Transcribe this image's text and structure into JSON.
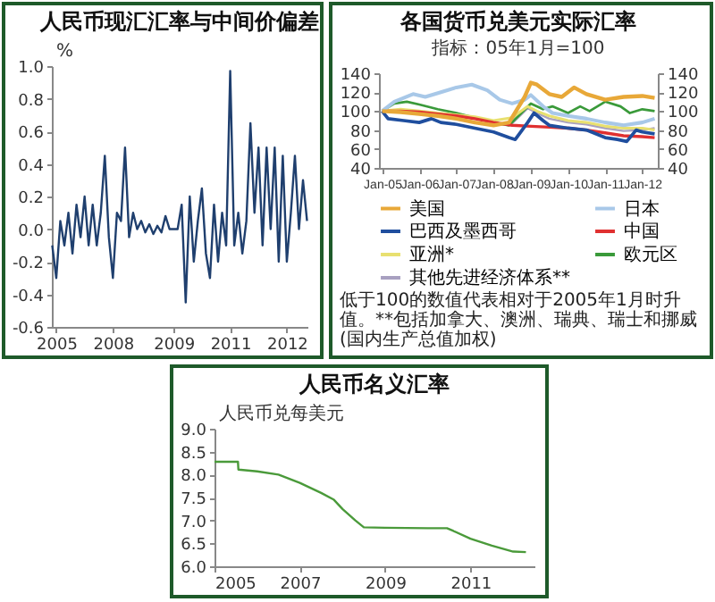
{
  "chart_data": [
    {
      "type": "line",
      "title": "人民币现汇汇率与中间价偏差",
      "ylabel": "%",
      "color": "#1f3f6e",
      "categories": [
        null,
        "2005",
        null,
        null,
        null,
        null,
        null,
        null,
        null,
        null,
        null,
        null,
        null,
        null,
        null,
        "2008",
        null,
        null,
        null,
        null,
        null,
        null,
        null,
        null,
        null,
        null,
        null,
        null,
        null,
        null,
        "2009",
        null,
        null,
        null,
        null,
        null,
        null,
        null,
        null,
        null,
        null,
        null,
        null,
        null,
        "2011",
        null,
        null,
        null,
        null,
        null,
        null,
        null,
        null,
        null,
        null,
        null,
        null,
        null,
        "2012",
        null,
        null,
        null,
        null,
        null
      ],
      "values": [
        -0.1,
        -0.3,
        0.05,
        -0.1,
        0.1,
        -0.15,
        0.15,
        -0.05,
        0.2,
        -0.1,
        0.15,
        -0.1,
        0.1,
        0.45,
        -0.05,
        -0.3,
        0.1,
        0.05,
        0.5,
        -0.05,
        0.1,
        0.0,
        0.05,
        -0.02,
        0.03,
        -0.03,
        0.02,
        -0.02,
        0.08,
        0.0,
        0.0,
        0.0,
        0.15,
        -0.45,
        0.2,
        -0.2,
        0.05,
        0.25,
        -0.15,
        -0.3,
        0.15,
        -0.2,
        0.1,
        -0.1,
        0.97,
        -0.1,
        0.1,
        -0.15,
        0.05,
        0.65,
        0.1,
        0.5,
        -0.1,
        0.5,
        0.0,
        0.5,
        -0.2,
        0.45,
        -0.2,
        0.1,
        0.45,
        0.0,
        0.3,
        0.05
      ],
      "ylim": [
        -0.6,
        1.0
      ],
      "yticks": [
        {
          "value": -0.6,
          "label": "-0.6"
        },
        {
          "value": -0.4,
          "label": "-0.4"
        },
        {
          "value": -0.2,
          "label": "-0.2"
        },
        {
          "value": 0,
          "label": "0.0"
        },
        {
          "value": 0.2,
          "label": "0.2"
        },
        {
          "value": 0.4,
          "label": "0.4"
        },
        {
          "value": 0.6,
          "label": "0.6"
        },
        {
          "value": 0.8,
          "label": "0.8"
        },
        {
          "value": 1.0,
          "label": "1.0"
        }
      ]
    },
    {
      "type": "line",
      "title": "各国货币兑美元实际汇率",
      "subtitle": "指标：05年1月=100",
      "legend": "bottom",
      "annotations": [
        "低于100的数值代表相对于2005年1月时升值。**包括加拿大、澳洲、瑞典、瑞士和挪威(国内生产总值加权)"
      ],
      "series": [
        {
          "name": "美国",
          "color": "#e8a838",
          "x": [
            "2005-01",
            "2005-07",
            "2006-01",
            "2006-07",
            "2007-01",
            "2007-07",
            "2008-01",
            "2008-06",
            "2008-11",
            "2009-01",
            "2009-03",
            "2009-07",
            "2009-11",
            "2010-03",
            "2010-07",
            "2011-01",
            "2011-07",
            "2012-01",
            "2012-05"
          ],
          "values": [
            100,
            99,
            97,
            95,
            92,
            88,
            85,
            88,
            115,
            130,
            128,
            118,
            115,
            125,
            118,
            112,
            115,
            116,
            114
          ]
        },
        {
          "name": "日本",
          "color": "#a8c8e8",
          "x": [
            "2005-01",
            "2005-05",
            "2005-11",
            "2006-03",
            "2006-08",
            "2007-01",
            "2007-06",
            "2007-11",
            "2008-03",
            "2008-07",
            "2008-11",
            "2009-01",
            "2009-05",
            "2009-08",
            "2010-01",
            "2010-07",
            "2011-01",
            "2011-07",
            "2012-01",
            "2012-05"
          ],
          "values": [
            100,
            110,
            118,
            115,
            120,
            125,
            128,
            122,
            112,
            108,
            112,
            117,
            105,
            98,
            95,
            92,
            88,
            85,
            88,
            92
          ]
        },
        {
          "name": "巴西及墨西哥",
          "color": "#1f4e9e",
          "x": [
            "2005-01",
            "2005-03",
            "2005-08",
            "2006-01",
            "2006-05",
            "2006-08",
            "2007-01",
            "2007-07",
            "2008-01",
            "2008-06",
            "2008-08",
            "2008-12",
            "2009-02",
            "2009-05",
            "2009-07",
            "2010-01",
            "2010-07",
            "2011-01",
            "2011-05",
            "2011-08",
            "2011-11",
            "2012-01",
            "2012-05"
          ],
          "values": [
            100,
            92,
            90,
            88,
            92,
            88,
            86,
            82,
            78,
            72,
            70,
            88,
            98,
            90,
            85,
            82,
            80,
            72,
            70,
            68,
            80,
            78,
            76
          ]
        },
        {
          "name": "中国",
          "color": "#e03030",
          "x": [
            "2005-01",
            "2005-07",
            "2006-01",
            "2006-07",
            "2007-01",
            "2007-07",
            "2008-01",
            "2008-07",
            "2009-01",
            "2009-07",
            "2010-01",
            "2010-07",
            "2011-01",
            "2011-07",
            "2012-01",
            "2012-05"
          ],
          "values": [
            100,
            100,
            99,
            97,
            95,
            92,
            88,
            85,
            84,
            83,
            82,
            80,
            77,
            74,
            73,
            72
          ]
        },
        {
          "name": "亚洲*",
          "color": "#e8e070",
          "x": [
            "2005-01",
            "2005-07",
            "2006-01",
            "2006-07",
            "2007-01",
            "2007-07",
            "2008-01",
            "2008-07",
            "2008-12",
            "2009-03",
            "2009-07",
            "2010-01",
            "2010-07",
            "2011-01",
            "2011-07",
            "2012-01",
            "2012-05"
          ],
          "values": [
            100,
            102,
            100,
            98,
            96,
            94,
            90,
            93,
            105,
            100,
            95,
            90,
            88,
            84,
            82,
            82,
            80
          ]
        },
        {
          "name": "欧元区",
          "color": "#3a9a3a",
          "x": [
            "2005-01",
            "2005-05",
            "2005-09",
            "2006-01",
            "2006-07",
            "2007-01",
            "2007-07",
            "2008-01",
            "2008-06",
            "2008-09",
            "2009-01",
            "2009-05",
            "2009-08",
            "2010-01",
            "2010-05",
            "2010-08",
            "2011-01",
            "2011-06",
            "2011-09",
            "2012-01",
            "2012-05"
          ],
          "values": [
            100,
            108,
            110,
            107,
            102,
            98,
            93,
            88,
            85,
            95,
            108,
            102,
            105,
            98,
            105,
            100,
            110,
            105,
            98,
            102,
            100
          ]
        },
        {
          "name": "其他先进经济体系**",
          "color": "#a8a0c0",
          "x": [
            "2005-01",
            "2005-07",
            "2006-01",
            "2006-07",
            "2007-01",
            "2007-07",
            "2008-01",
            "2008-07",
            "2008-12",
            "2009-03",
            "2009-07",
            "2010-01",
            "2010-07",
            "2011-01",
            "2011-07",
            "2012-01",
            "2012-05"
          ],
          "values": [
            100,
            101,
            100,
            96,
            92,
            88,
            85,
            87,
            103,
            98,
            92,
            88,
            86,
            82,
            79,
            80,
            82
          ]
        }
      ],
      "xlim": [
        "2004-12",
        "2012-06"
      ],
      "xticks": [
        {
          "value": "2005-01",
          "label": "Jan-05"
        },
        {
          "value": "2006-01",
          "label": "Jan-06"
        },
        {
          "value": "2007-01",
          "label": "Jan-07"
        },
        {
          "value": "2008-01",
          "label": "Jan-08"
        },
        {
          "value": "2009-01",
          "label": "Jan-09"
        },
        {
          "value": "2010-01",
          "label": "Jan-10"
        },
        {
          "value": "2011-01",
          "label": "Jan-11"
        },
        {
          "value": "2012-01",
          "label": "Jan-12"
        }
      ],
      "ylim": [
        40,
        140
      ],
      "yticks": [
        40,
        60,
        80,
        100,
        120,
        140
      ],
      "y2lim": [
        40,
        140
      ],
      "y2ticks": [
        40,
        60,
        80,
        100,
        120,
        140
      ]
    },
    {
      "type": "line",
      "title": "人民币名义汇率",
      "ylabel": "人民币兑每美元",
      "color": "#4a9a3a",
      "x": [
        2005,
        2005.55,
        2005.56,
        2006,
        2006.5,
        2007,
        2007.5,
        2007.8,
        2008,
        2008.3,
        2008.5,
        2009,
        2010,
        2010.45,
        2010.6,
        2011,
        2011.5,
        2012,
        2012.3
      ],
      "values": [
        8.28,
        8.28,
        8.11,
        8.07,
        8.0,
        7.82,
        7.6,
        7.45,
        7.25,
        7.0,
        6.85,
        6.84,
        6.83,
        6.83,
        6.77,
        6.6,
        6.45,
        6.32,
        6.31
      ],
      "xlim": [
        2005,
        2012.5
      ],
      "xticks": [
        2005,
        2007,
        2009,
        2011
      ],
      "ylim": [
        6.0,
        9.0
      ],
      "yticks": [
        {
          "value": 6.0,
          "label": "6.0"
        },
        {
          "value": 6.5,
          "label": "6.5"
        },
        {
          "value": 7.0,
          "label": "7.0"
        },
        {
          "value": 7.5,
          "label": "7.5"
        },
        {
          "value": 8.0,
          "label": "8.0"
        },
        {
          "value": 8.5,
          "label": "8.5"
        },
        {
          "value": 9.0,
          "label": "9.0"
        }
      ]
    }
  ]
}
